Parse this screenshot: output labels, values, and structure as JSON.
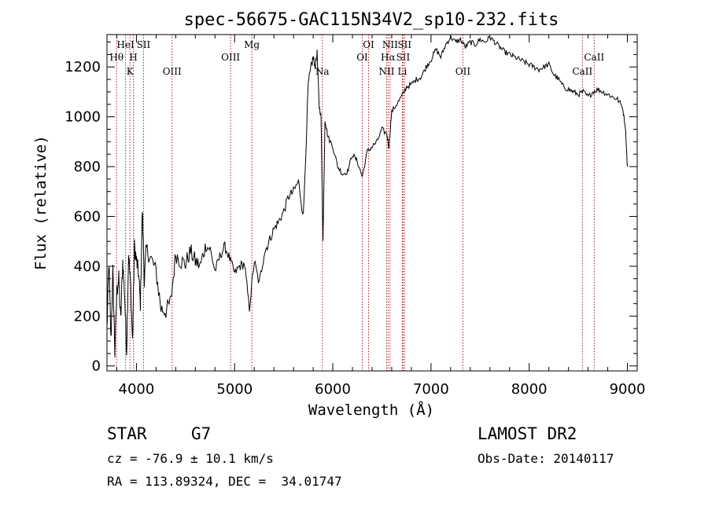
{
  "chart_data": {
    "type": "line",
    "title": "spec-56675-GAC115N34V2_sp10-232.fits",
    "xlabel": "Wavelength (Å)",
    "ylabel": "Flux (relative)",
    "xlim": [
      3700,
      9100
    ],
    "ylim": [
      -20,
      1330
    ],
    "xticks": [
      4000,
      5000,
      6000,
      7000,
      8000,
      9000
    ],
    "yticks": [
      0,
      200,
      400,
      600,
      800,
      1000,
      1200
    ],
    "grid": false,
    "series": [
      {
        "x": [
          3700,
          3720,
          3740,
          3760,
          3780,
          3800,
          3820,
          3840,
          3860,
          3880,
          3900,
          3920,
          3940,
          3960,
          3980,
          4000,
          4020,
          4040,
          4060,
          4080,
          4100,
          4150,
          4200,
          4250,
          4300,
          4350,
          4400,
          4450,
          4500,
          4550,
          4600,
          4650,
          4700,
          4750,
          4800,
          4850,
          4900,
          4950,
          5000,
          5050,
          5100,
          5150,
          5200,
          5250,
          5300,
          5350,
          5400,
          5450,
          5500,
          5550,
          5600,
          5650,
          5700,
          5750,
          5780,
          5800,
          5820,
          5840,
          5860,
          5880,
          5900,
          5920,
          5950,
          6000,
          6050,
          6100,
          6150,
          6200,
          6250,
          6300,
          6350,
          6400,
          6450,
          6500,
          6550,
          6570,
          6600,
          6650,
          6700,
          6750,
          6800,
          6850,
          6900,
          6950,
          7000,
          7050,
          7100,
          7150,
          7200,
          7250,
          7300,
          7350,
          7400,
          7450,
          7500,
          7550,
          7600,
          7650,
          7700,
          7750,
          7800,
          7850,
          7900,
          7950,
          8000,
          8050,
          8100,
          8150,
          8200,
          8250,
          8300,
          8350,
          8400,
          8450,
          8500,
          8550,
          8600,
          8650,
          8700,
          8750,
          8800,
          8850,
          8900,
          8950,
          8980,
          9000
        ],
        "y": [
          150,
          420,
          100,
          380,
          50,
          300,
          350,
          180,
          420,
          280,
          60,
          450,
          330,
          100,
          480,
          420,
          380,
          250,
          630,
          350,
          470,
          430,
          380,
          230,
          220,
          260,
          450,
          420,
          410,
          460,
          420,
          400,
          480,
          470,
          380,
          440,
          480,
          430,
          370,
          400,
          410,
          230,
          420,
          330,
          450,
          500,
          550,
          580,
          620,
          680,
          700,
          740,
          600,
          1130,
          1200,
          1240,
          1200,
          1260,
          1050,
          1000,
          500,
          990,
          920,
          880,
          800,
          770,
          780,
          850,
          820,
          760,
          860,
          880,
          900,
          950,
          930,
          880,
          1020,
          1050,
          1080,
          1120,
          1130,
          1150,
          1160,
          1200,
          1230,
          1270,
          1240,
          1290,
          1320,
          1300,
          1310,
          1280,
          1300,
          1290,
          1310,
          1300,
          1320,
          1300,
          1280,
          1260,
          1250,
          1240,
          1230,
          1220,
          1210,
          1200,
          1190,
          1200,
          1210,
          1170,
          1150,
          1120,
          1110,
          1100,
          1090,
          1100,
          1080,
          1100,
          1110,
          1100,
          1090,
          1080,
          1070,
          1040,
          960,
          800
        ]
      }
    ],
    "spectral_lines": [
      {
        "name": "Hθ",
        "x": 3798,
        "row": 1
      },
      {
        "name": "HeI",
        "x": 3889,
        "row": 0
      },
      {
        "name": "K",
        "x": 3934,
        "row": 2
      },
      {
        "name": "H",
        "x": 3969,
        "row": 1
      },
      {
        "name": "SII",
        "x": 4072,
        "row": 0
      },
      {
        "name": "OIII",
        "x": 4363,
        "row": 2
      },
      {
        "name": "OIII",
        "x": 4959,
        "row": 1
      },
      {
        "name": "Mg",
        "x": 5175,
        "row": 0
      },
      {
        "name": "Na",
        "x": 5893,
        "row": 2
      },
      {
        "name": "OI",
        "x": 6300,
        "row": 1
      },
      {
        "name": "OI",
        "x": 6364,
        "row": 0
      },
      {
        "name": "NII",
        "x": 6548,
        "row": 2
      },
      {
        "name": "Hα",
        "x": 6563,
        "row": 1
      },
      {
        "name": "NII",
        "x": 6583,
        "row": 0
      },
      {
        "name": "Li",
        "x": 6708,
        "row": 2
      },
      {
        "name": "SII",
        "x": 6716,
        "row": 1
      },
      {
        "name": "SII",
        "x": 6731,
        "row": 0
      },
      {
        "name": "OII",
        "x": 7325,
        "row": 2
      },
      {
        "name": "CaII",
        "x": 8542,
        "row": 2
      },
      {
        "name": "CaII",
        "x": 8662,
        "row": 1
      }
    ]
  },
  "info": {
    "object_class": "STAR",
    "subclass": "G7",
    "survey": "LAMOST DR2",
    "velocity": "cz = -76.9 ± 10.1 km/s",
    "obs_date": "Obs-Date: 20140117",
    "coords": "RA = 113.89324, DEC =  34.01747"
  }
}
